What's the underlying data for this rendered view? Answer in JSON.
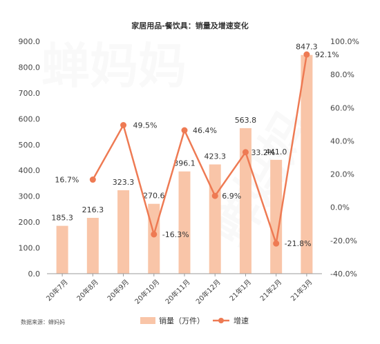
{
  "source_label": "数据来源：蝉妈妈",
  "watermark": "蝉妈妈",
  "colors": {
    "bar": "#f9c5a8",
    "line": "#ee7a53",
    "text": "#333333",
    "axis": "#999999"
  },
  "chart_data": {
    "type": "bar+line",
    "title": "家居用品-餐饮具：销量及增速变化",
    "categories": [
      "20年7月",
      "20年8月",
      "20年9月",
      "20年10月",
      "20年11月",
      "20年12月",
      "21年1月",
      "21年2月",
      "21年3月"
    ],
    "series": [
      {
        "name": "销量（万件）",
        "type": "bar",
        "axis": "left",
        "values": [
          185.3,
          216.3,
          323.3,
          270.6,
          396.1,
          423.3,
          563.8,
          441.0,
          847.3
        ],
        "labels": [
          "185.3",
          "216.3",
          "323.3",
          "270.6",
          "396.1",
          "423.3",
          "563.8",
          "441.0",
          "847.3"
        ]
      },
      {
        "name": "增速",
        "type": "line",
        "axis": "right",
        "values": [
          null,
          16.7,
          49.5,
          -16.3,
          46.4,
          6.9,
          33.2,
          -21.8,
          92.1
        ],
        "labels": [
          "",
          "16.7%",
          "49.5%",
          "-16.3%",
          "46.4%",
          "6.9%",
          "33.2%",
          "-21.8%",
          "92.1%"
        ]
      }
    ],
    "ylim_left": [
      0,
      900
    ],
    "yticks_left": [
      "0.0",
      "100.0",
      "200.0",
      "300.0",
      "400.0",
      "500.0",
      "600.0",
      "700.0",
      "800.0",
      "900.0"
    ],
    "ylim_right": [
      -40,
      100
    ],
    "yticks_right": [
      "-40.0%",
      "-20.0%",
      "0.0%",
      "20.0%",
      "40.0%",
      "60.0%",
      "80.0%",
      "100.0%"
    ],
    "legend_position": "bottom",
    "grid": false
  }
}
